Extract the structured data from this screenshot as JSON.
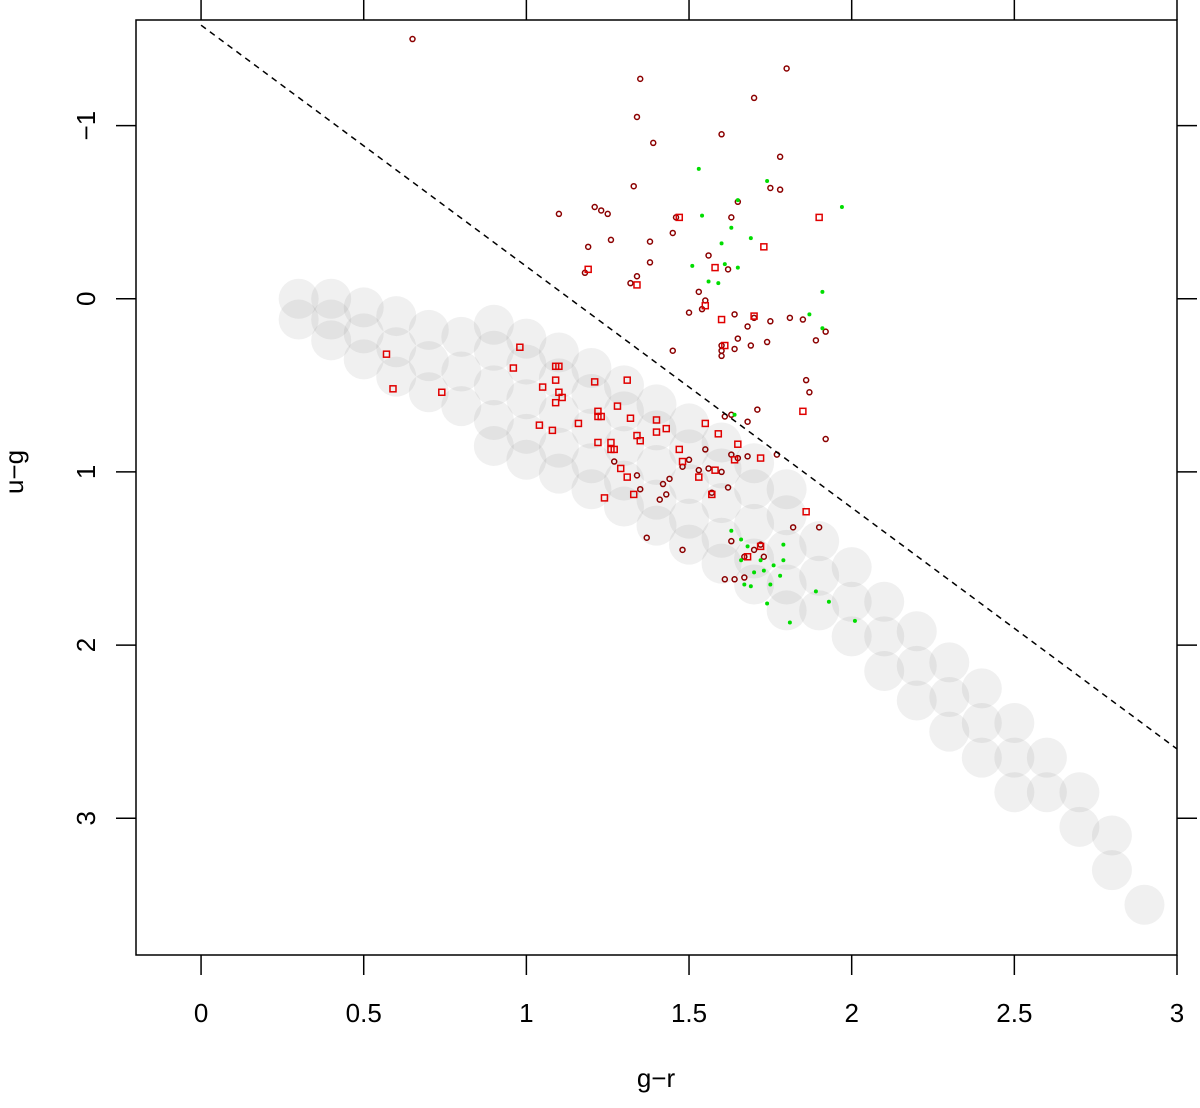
{
  "chart_data": {
    "type": "scatter",
    "x_label": "g−r",
    "y_label": "u−g",
    "xlim": [
      -0.2,
      3.0
    ],
    "ylim": [
      -1.61,
      3.79
    ],
    "y_reversed": true,
    "xticks": [
      0,
      0.5,
      1,
      1.5,
      2,
      2.5,
      3
    ],
    "yticks": [
      {
        "value": -1,
        "label": "−1"
      },
      0,
      1,
      2,
      3
    ],
    "reference_line": {
      "x": [
        0,
        3
      ],
      "y": [
        -1.58,
        2.6
      ],
      "color": "#000000",
      "dashed": true
    },
    "series": [
      {
        "marker": "cloud",
        "color": "#555555",
        "x": [
          0.3,
          0.3,
          0.4,
          0.4,
          0.4,
          0.5,
          0.5,
          0.5,
          0.6,
          0.6,
          0.6,
          0.7,
          0.7,
          0.7,
          0.8,
          0.8,
          0.8,
          0.9,
          0.9,
          0.9,
          0.9,
          0.9,
          1.0,
          1.0,
          1.0,
          1.0,
          1.0,
          1.1,
          1.1,
          1.1,
          1.1,
          1.1,
          1.2,
          1.2,
          1.2,
          1.2,
          1.2,
          1.3,
          1.3,
          1.3,
          1.3,
          1.3,
          1.4,
          1.4,
          1.4,
          1.4,
          1.4,
          1.5,
          1.5,
          1.5,
          1.5,
          1.5,
          1.6,
          1.6,
          1.6,
          1.6,
          1.6,
          1.7,
          1.7,
          1.7,
          1.7,
          1.7,
          1.8,
          1.8,
          1.8,
          1.8,
          1.8,
          1.9,
          1.9,
          1.9,
          2.0,
          2.0,
          2.0,
          2.1,
          2.1,
          2.1,
          2.2,
          2.2,
          2.2,
          2.3,
          2.3,
          2.3,
          2.4,
          2.4,
          2.4,
          2.5,
          2.5,
          2.5,
          2.6,
          2.6,
          2.7,
          2.7,
          2.8,
          2.8,
          2.9
        ],
        "y": [
          0.0,
          0.12,
          0.0,
          0.12,
          0.24,
          0.05,
          0.2,
          0.35,
          0.1,
          0.28,
          0.45,
          0.18,
          0.36,
          0.54,
          0.22,
          0.42,
          0.62,
          0.15,
          0.3,
          0.5,
          0.7,
          0.85,
          0.23,
          0.38,
          0.58,
          0.78,
          0.93,
          0.31,
          0.46,
          0.66,
          0.86,
          1.01,
          0.4,
          0.55,
          0.75,
          0.95,
          1.1,
          0.5,
          0.65,
          0.85,
          1.05,
          1.2,
          0.61,
          0.76,
          0.96,
          1.16,
          1.31,
          0.72,
          0.87,
          1.07,
          1.27,
          1.42,
          0.83,
          0.98,
          1.18,
          1.38,
          1.53,
          0.95,
          1.1,
          1.3,
          1.5,
          1.65,
          1.1,
          1.25,
          1.45,
          1.65,
          1.8,
          1.4,
          1.6,
          1.8,
          1.55,
          1.75,
          1.95,
          1.75,
          1.95,
          2.15,
          1.92,
          2.12,
          2.32,
          2.1,
          2.3,
          2.5,
          2.25,
          2.45,
          2.65,
          2.45,
          2.65,
          2.85,
          2.65,
          2.85,
          2.85,
          3.05,
          3.1,
          3.3,
          3.5
        ]
      },
      {
        "marker": "circle",
        "color": "#8b0000",
        "x": [
          0.65,
          1.35,
          1.8,
          1.7,
          1.34,
          1.39,
          1.6,
          1.78,
          1.75,
          1.78,
          1.33,
          1.1,
          1.21,
          1.23,
          1.25,
          1.65,
          1.63,
          1.46,
          1.26,
          1.19,
          1.38,
          1.45,
          1.18,
          1.38,
          1.34,
          1.32,
          1.56,
          1.62,
          1.53,
          1.55,
          1.5,
          1.54,
          1.64,
          1.7,
          1.75,
          1.81,
          1.85,
          1.92,
          1.45,
          1.6,
          1.65,
          1.68,
          1.69,
          1.74,
          1.6,
          1.64,
          1.89,
          1.6,
          1.86,
          1.87,
          1.71,
          1.68,
          1.63,
          1.61,
          1.92,
          1.55,
          1.5,
          1.68,
          1.65,
          1.63,
          1.77,
          1.56,
          1.53,
          1.48,
          1.44,
          1.6,
          1.62,
          1.57,
          1.34,
          1.35,
          1.42,
          1.43,
          1.41,
          1.27,
          1.37,
          1.48,
          1.63,
          1.72,
          1.73,
          1.7,
          1.67,
          1.64,
          1.61,
          1.67,
          1.82,
          1.9
        ],
        "y": [
          -1.5,
          -1.27,
          -1.33,
          -1.16,
          -1.05,
          -0.9,
          -0.95,
          -0.82,
          -0.64,
          -0.63,
          -0.65,
          -0.49,
          -0.53,
          -0.51,
          -0.49,
          -0.56,
          -0.47,
          -0.47,
          -0.34,
          -0.3,
          -0.33,
          -0.38,
          -0.15,
          -0.21,
          -0.13,
          -0.09,
          -0.25,
          -0.17,
          -0.04,
          0.01,
          0.08,
          0.06,
          0.09,
          0.11,
          0.13,
          0.11,
          0.12,
          0.19,
          0.3,
          0.27,
          0.23,
          0.16,
          0.27,
          0.25,
          0.33,
          0.29,
          0.24,
          0.3,
          0.47,
          0.54,
          0.64,
          0.71,
          0.67,
          0.68,
          0.81,
          0.87,
          0.93,
          0.91,
          0.92,
          0.9,
          0.9,
          0.98,
          0.99,
          0.97,
          1.04,
          1.0,
          1.09,
          1.12,
          1.02,
          1.1,
          1.07,
          1.13,
          1.16,
          0.94,
          1.38,
          1.45,
          1.4,
          1.42,
          1.49,
          1.45,
          1.49,
          1.62,
          1.62,
          1.61,
          1.32,
          1.32
        ]
      },
      {
        "marker": "square",
        "color": "#e00000",
        "x": [
          0.57,
          0.59,
          0.74,
          0.98,
          0.96,
          1.09,
          1.1,
          1.09,
          1.1,
          1.11,
          1.05,
          1.09,
          1.08,
          1.04,
          1.16,
          1.21,
          1.31,
          1.22,
          1.22,
          1.23,
          1.28,
          1.32,
          1.22,
          1.26,
          1.26,
          1.27,
          1.34,
          1.4,
          1.4,
          1.43,
          1.29,
          1.31,
          1.24,
          1.33,
          1.35,
          1.47,
          1.48,
          1.53,
          1.58,
          1.57,
          1.59,
          1.55,
          1.65,
          1.64,
          1.72,
          1.86,
          1.85,
          1.68,
          1.72,
          1.34,
          1.47,
          1.9,
          1.73,
          1.58,
          1.19,
          1.6,
          1.61,
          1.7,
          1.55
        ],
        "y": [
          0.32,
          0.52,
          0.54,
          0.28,
          0.4,
          0.39,
          0.39,
          0.47,
          0.54,
          0.57,
          0.51,
          0.6,
          0.76,
          0.73,
          0.72,
          0.48,
          0.47,
          0.65,
          0.68,
          0.68,
          0.62,
          0.69,
          0.83,
          0.83,
          0.87,
          0.87,
          0.79,
          0.7,
          0.77,
          0.75,
          0.98,
          1.03,
          1.15,
          1.13,
          0.82,
          0.87,
          0.94,
          1.03,
          0.99,
          1.13,
          0.78,
          0.72,
          0.84,
          0.93,
          0.92,
          1.23,
          0.65,
          1.49,
          1.43,
          -0.08,
          -0.47,
          -0.47,
          -0.3,
          -0.18,
          -0.17,
          0.12,
          0.27,
          0.1,
          0.04
        ]
      },
      {
        "marker": "dot",
        "color": "#00dd00",
        "x": [
          1.53,
          1.74,
          1.97,
          1.65,
          1.54,
          1.63,
          1.6,
          1.69,
          1.51,
          1.61,
          1.65,
          1.56,
          1.59,
          1.91,
          1.87,
          1.91,
          1.64,
          1.63,
          1.66,
          1.68,
          1.72,
          1.73,
          1.76,
          1.79,
          1.78,
          1.69,
          1.74,
          1.81,
          1.89,
          1.93,
          2.01,
          1.67,
          1.7,
          1.75,
          1.66,
          1.79
        ],
        "y": [
          -0.75,
          -0.68,
          -0.53,
          -0.57,
          -0.48,
          -0.41,
          -0.32,
          -0.35,
          -0.19,
          -0.2,
          -0.18,
          -0.1,
          -0.09,
          -0.04,
          0.09,
          0.17,
          0.67,
          1.34,
          1.39,
          1.43,
          1.51,
          1.57,
          1.54,
          1.51,
          1.6,
          1.66,
          1.76,
          1.87,
          1.69,
          1.75,
          1.86,
          1.65,
          1.58,
          1.65,
          1.51,
          1.42
        ]
      }
    ]
  }
}
